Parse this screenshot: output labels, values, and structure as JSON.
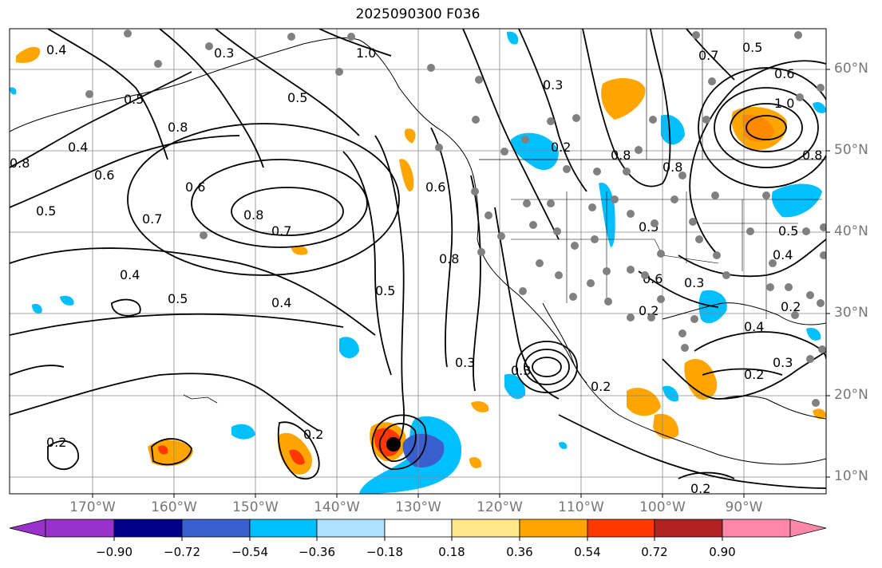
{
  "title": "2025090300 F036",
  "lat_labels": [
    "60°N",
    "50°N",
    "40°N",
    "30°N",
    "20°N",
    "10°N"
  ],
  "lon_labels": [
    "170°W",
    "160°W",
    "150°W",
    "140°W",
    "130°W",
    "120°W",
    "110°W",
    "100°W",
    "90°W"
  ],
  "colorbar": {
    "labels": [
      "−0.90",
      "−0.72",
      "−0.54",
      "−0.36",
      "−0.18",
      "0.18",
      "0.36",
      "0.54",
      "0.72",
      "0.90"
    ],
    "colors": [
      "#9932cc",
      "#00008b",
      "#3a5fcd",
      "#00bfff",
      "#b0e0ff",
      "#ffffff",
      "#ffe88a",
      "#ffa500",
      "#ff3800",
      "#b22222",
      "#ff88aa"
    ]
  },
  "contour_labels": [
    "0.4",
    "0.3",
    "1.0",
    "0.5",
    "0.8",
    "0.5",
    "0.3",
    "0.2",
    "0.8",
    "1.0",
    "0.6",
    "0.7",
    "0.5",
    "0.8",
    "0.6",
    "0.4",
    "0.5",
    "0.6",
    "0.8",
    "0.7",
    "0.8",
    "0.6",
    "0.7",
    "0.5",
    "0.8",
    "0.5",
    "0.4",
    "0.4",
    "0.5",
    "0.8",
    "0.3",
    "0.3",
    "0.2",
    "0.2",
    "0.5",
    "0.6",
    "0.3",
    "0.4",
    "0.4",
    "0.3",
    "0.2",
    "0.2",
    "0.2",
    "0.2",
    "0.2"
  ],
  "colors": {
    "contour": "#000000",
    "grid": "#888888",
    "coast": "#000000",
    "station": "#808080"
  }
}
